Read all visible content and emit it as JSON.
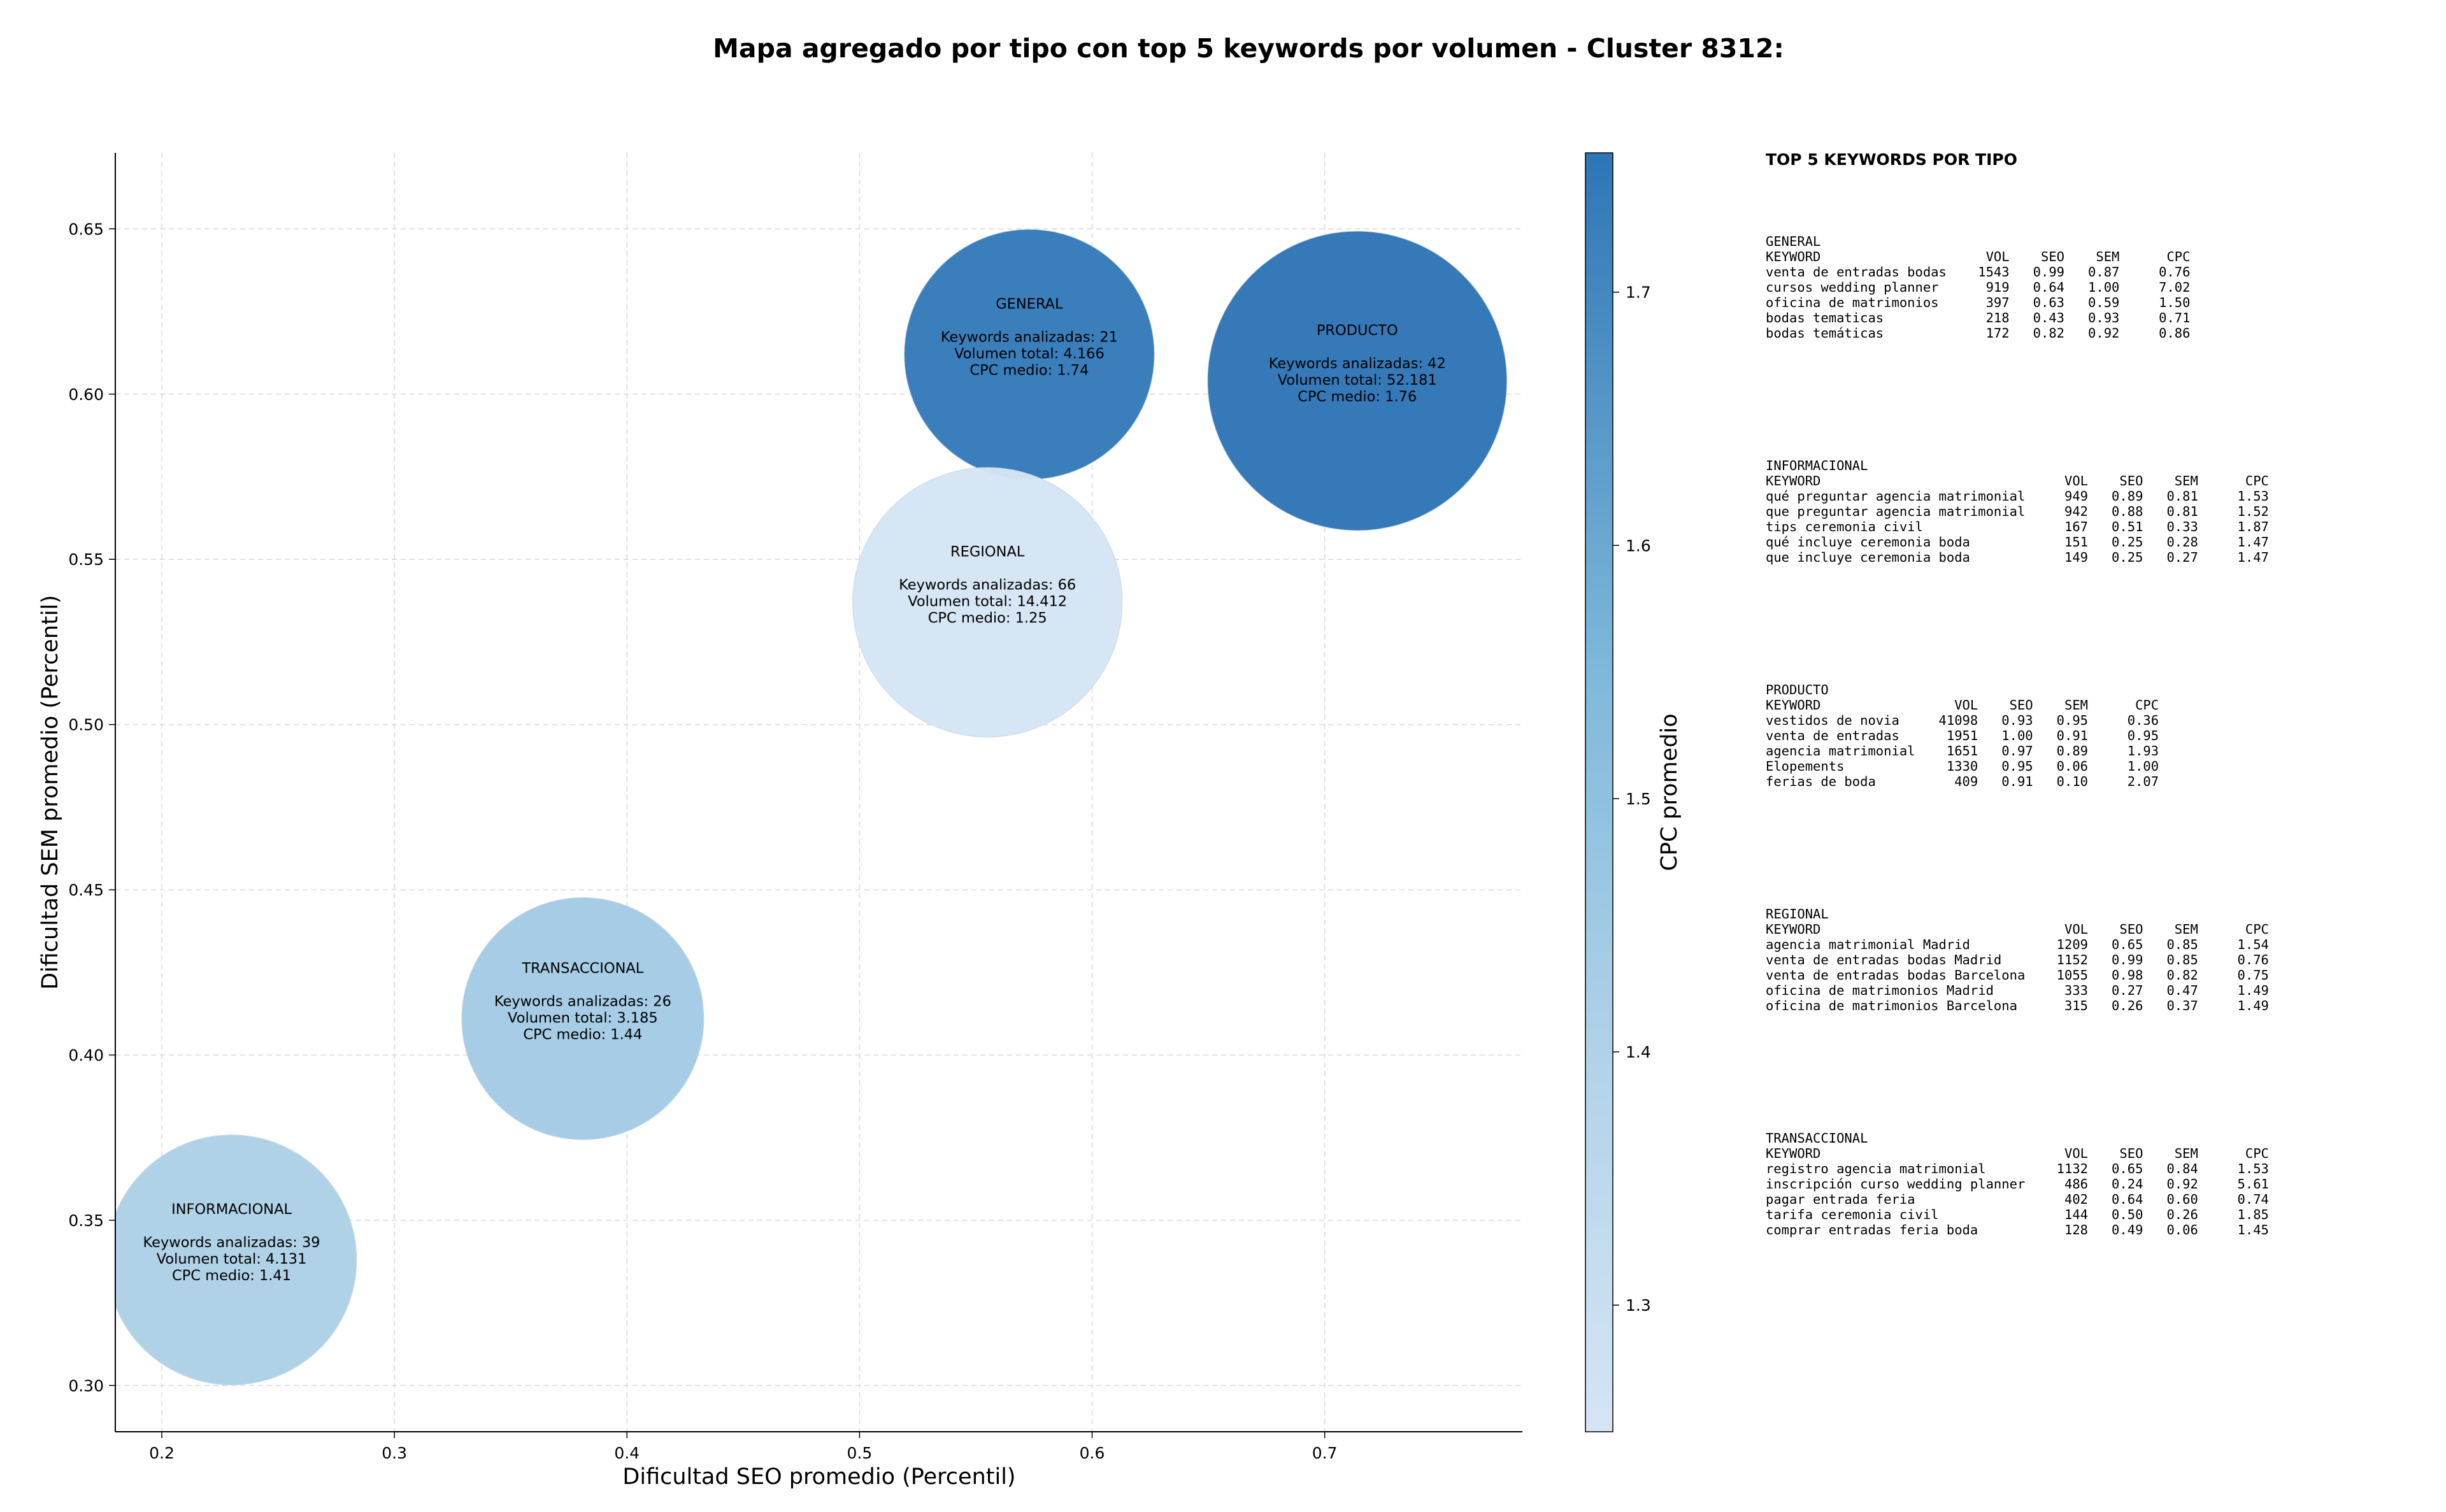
{
  "chart_data": {
    "type": "scatter",
    "title": "Mapa agregado por tipo con top 5 keywords por volumen - Cluster 8312:",
    "xlabel": "Dificultad SEO promedio (Percentil)",
    "ylabel": "Dificultad SEM promedio (Percentil)",
    "xlim": [
      0.18,
      0.785
    ],
    "ylim": [
      0.286,
      0.673
    ],
    "xticks": [
      "0.2",
      "0.3",
      "0.4",
      "0.5",
      "0.6",
      "0.7"
    ],
    "yticks": [
      "0.30",
      "0.35",
      "0.40",
      "0.45",
      "0.50",
      "0.55",
      "0.60",
      "0.65"
    ],
    "grid": true,
    "colorbar": {
      "label": "CPC promedio",
      "range": [
        1.25,
        1.755
      ],
      "ticks": [
        "1.3",
        "1.4",
        "1.5",
        "1.6",
        "1.7"
      ],
      "colormap": "Blues"
    },
    "points": [
      {
        "name": "GENERAL",
        "x": 0.573,
        "y": 0.612,
        "keywords": 21,
        "volume": 4166,
        "cpc": 1.74,
        "lines": [
          "GENERAL",
          "",
          "Keywords analizadas: 21",
          "Volumen total: 4.166",
          "CPC medio: 1.74"
        ]
      },
      {
        "name": "PRODUCTO",
        "x": 0.714,
        "y": 0.604,
        "keywords": 42,
        "volume": 52181,
        "cpc": 1.76,
        "lines": [
          "PRODUCTO",
          "",
          "Keywords analizadas: 42",
          "Volumen total: 52.181",
          "CPC medio: 1.76"
        ]
      },
      {
        "name": "REGIONAL",
        "x": 0.555,
        "y": 0.537,
        "keywords": 66,
        "volume": 14412,
        "cpc": 1.25,
        "lines": [
          "REGIONAL",
          "",
          "Keywords analizadas: 66",
          "Volumen total: 14.412",
          "CPC medio: 1.25"
        ]
      },
      {
        "name": "TRANSACCIONAL",
        "x": 0.381,
        "y": 0.411,
        "keywords": 26,
        "volume": 3185,
        "cpc": 1.44,
        "lines": [
          "TRANSACCIONAL",
          "",
          "Keywords analizadas: 26",
          "Volumen total: 3.185",
          "CPC medio: 1.44"
        ]
      },
      {
        "name": "INFORMACIONAL",
        "x": 0.23,
        "y": 0.338,
        "keywords": 39,
        "volume": 4131,
        "cpc": 1.41,
        "lines": [
          "INFORMACIONAL",
          "",
          "Keywords analizadas: 39",
          "Volumen total: 4.131",
          "CPC medio: 1.41"
        ]
      }
    ]
  },
  "tables": {
    "title": "TOP 5 KEYWORDS POR TIPO",
    "blocks": [
      {
        "name": "general",
        "lines": [
          "GENERAL",
          "KEYWORD                     VOL    SEO    SEM      CPC",
          "venta de entradas bodas    1543   0.99   0.87     0.76",
          "cursos wedding planner      919   0.64   1.00     7.02",
          "oficina de matrimonios      397   0.63   0.59     1.50",
          "bodas tematicas             218   0.43   0.93     0.71",
          "bodas temáticas             172   0.82   0.92     0.86"
        ]
      },
      {
        "name": "informacional",
        "lines": [
          "INFORMACIONAL",
          "KEYWORD                               VOL    SEO    SEM      CPC",
          "qué preguntar agencia matrimonial     949   0.89   0.81     1.53",
          "que preguntar agencia matrimonial     942   0.88   0.81     1.52",
          "tips ceremonia civil                  167   0.51   0.33     1.87",
          "qué incluye ceremonia boda            151   0.25   0.28     1.47",
          "que incluye ceremonia boda            149   0.25   0.27     1.47"
        ]
      },
      {
        "name": "producto",
        "lines": [
          "PRODUCTO",
          "KEYWORD                 VOL    SEO    SEM      CPC",
          "vestidos de novia     41098   0.93   0.95     0.36",
          "venta de entradas      1951   1.00   0.91     0.95",
          "agencia matrimonial    1651   0.97   0.89     1.93",
          "Elopements             1330   0.95   0.06     1.00",
          "ferias de boda          409   0.91   0.10     2.07"
        ]
      },
      {
        "name": "regional",
        "lines": [
          "REGIONAL",
          "KEYWORD                               VOL    SEO    SEM      CPC",
          "agencia matrimonial Madrid           1209   0.65   0.85     1.54",
          "venta de entradas bodas Madrid       1152   0.99   0.85     0.76",
          "venta de entradas bodas Barcelona    1055   0.98   0.82     0.75",
          "oficina de matrimonios Madrid         333   0.27   0.47     1.49",
          "oficina de matrimonios Barcelona      315   0.26   0.37     1.49"
        ]
      },
      {
        "name": "transaccional",
        "lines": [
          "TRANSACCIONAL",
          "KEYWORD                               VOL    SEO    SEM      CPC",
          "registro agencia matrimonial         1132   0.65   0.84     1.53",
          "inscripción curso wedding planner     486   0.24   0.92     5.61",
          "pagar entrada feria                   402   0.64   0.60     0.74",
          "tarifa ceremonia civil                144   0.50   0.26     1.85",
          "comprar entradas feria boda           128   0.49   0.06     1.45"
        ]
      }
    ]
  }
}
